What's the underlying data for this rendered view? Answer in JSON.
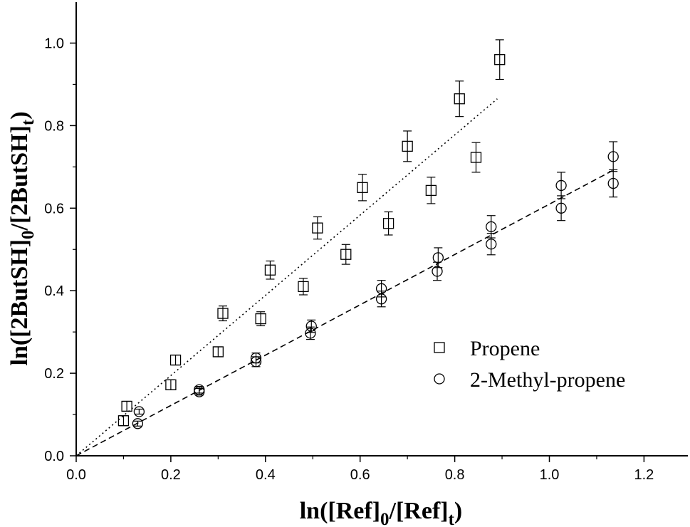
{
  "chart_data": {
    "type": "scatter",
    "title": "",
    "xlabel": {
      "main": "ln([Ref]",
      "sub0": "0",
      "mid": "/[Ref]",
      "sub1": "t",
      "end": ")"
    },
    "ylabel": {
      "main": "ln([2ButSH]",
      "sub0": "0",
      "mid": "/[2ButSH]",
      "sub1": "t",
      "end": ")"
    },
    "xlim": [
      0.0,
      1.3
    ],
    "ylim": [
      0.0,
      1.1
    ],
    "xticks": [
      "0.0",
      "0.2",
      "0.4",
      "0.6",
      "0.8",
      "1.0",
      "1.2"
    ],
    "yticks": [
      "0.0",
      "0.2",
      "0.4",
      "0.6",
      "0.8",
      "1.0"
    ],
    "grid": false,
    "legend_position": "center-right",
    "series": [
      {
        "name": "Propene",
        "marker": "square",
        "fit_line": {
          "style": "dotted",
          "x": [
            0.0,
            0.89
          ],
          "y": [
            0.0,
            0.865
          ]
        },
        "points": [
          {
            "x": 0.1,
            "y": 0.085,
            "err": 0.012
          },
          {
            "x": 0.107,
            "y": 0.12,
            "err": 0.012
          },
          {
            "x": 0.2,
            "y": 0.172,
            "err": 0.012
          },
          {
            "x": 0.21,
            "y": 0.232,
            "err": 0.012
          },
          {
            "x": 0.3,
            "y": 0.252,
            "err": 0.012
          },
          {
            "x": 0.31,
            "y": 0.345,
            "err": 0.018
          },
          {
            "x": 0.39,
            "y": 0.332,
            "err": 0.017
          },
          {
            "x": 0.41,
            "y": 0.45,
            "err": 0.022
          },
          {
            "x": 0.48,
            "y": 0.41,
            "err": 0.02
          },
          {
            "x": 0.51,
            "y": 0.552,
            "err": 0.027
          },
          {
            "x": 0.57,
            "y": 0.488,
            "err": 0.024
          },
          {
            "x": 0.605,
            "y": 0.65,
            "err": 0.032
          },
          {
            "x": 0.66,
            "y": 0.563,
            "err": 0.028
          },
          {
            "x": 0.7,
            "y": 0.75,
            "err": 0.037
          },
          {
            "x": 0.75,
            "y": 0.643,
            "err": 0.032
          },
          {
            "x": 0.81,
            "y": 0.865,
            "err": 0.043
          },
          {
            "x": 0.845,
            "y": 0.723,
            "err": 0.036
          },
          {
            "x": 0.895,
            "y": 0.96,
            "err": 0.048
          }
        ]
      },
      {
        "name": "2-Methyl-propene",
        "marker": "circle",
        "fit_line": {
          "style": "dashed",
          "x": [
            0.0,
            1.135
          ],
          "y": [
            0.0,
            0.692
          ]
        },
        "points": [
          {
            "x": 0.13,
            "y": 0.078,
            "err": 0.006
          },
          {
            "x": 0.133,
            "y": 0.107,
            "err": 0.006
          },
          {
            "x": 0.26,
            "y": 0.155,
            "err": 0.008
          },
          {
            "x": 0.26,
            "y": 0.16,
            "err": 0.008
          },
          {
            "x": 0.38,
            "y": 0.228,
            "err": 0.012
          },
          {
            "x": 0.38,
            "y": 0.237,
            "err": 0.012
          },
          {
            "x": 0.495,
            "y": 0.297,
            "err": 0.015
          },
          {
            "x": 0.497,
            "y": 0.314,
            "err": 0.015
          },
          {
            "x": 0.645,
            "y": 0.38,
            "err": 0.019
          },
          {
            "x": 0.645,
            "y": 0.405,
            "err": 0.02
          },
          {
            "x": 0.763,
            "y": 0.447,
            "err": 0.022
          },
          {
            "x": 0.765,
            "y": 0.48,
            "err": 0.024
          },
          {
            "x": 0.877,
            "y": 0.513,
            "err": 0.026
          },
          {
            "x": 0.877,
            "y": 0.555,
            "err": 0.027
          },
          {
            "x": 1.025,
            "y": 0.6,
            "err": 0.03
          },
          {
            "x": 1.025,
            "y": 0.655,
            "err": 0.032
          },
          {
            "x": 1.135,
            "y": 0.66,
            "err": 0.033
          },
          {
            "x": 1.135,
            "y": 0.725,
            "err": 0.036
          }
        ]
      }
    ]
  }
}
